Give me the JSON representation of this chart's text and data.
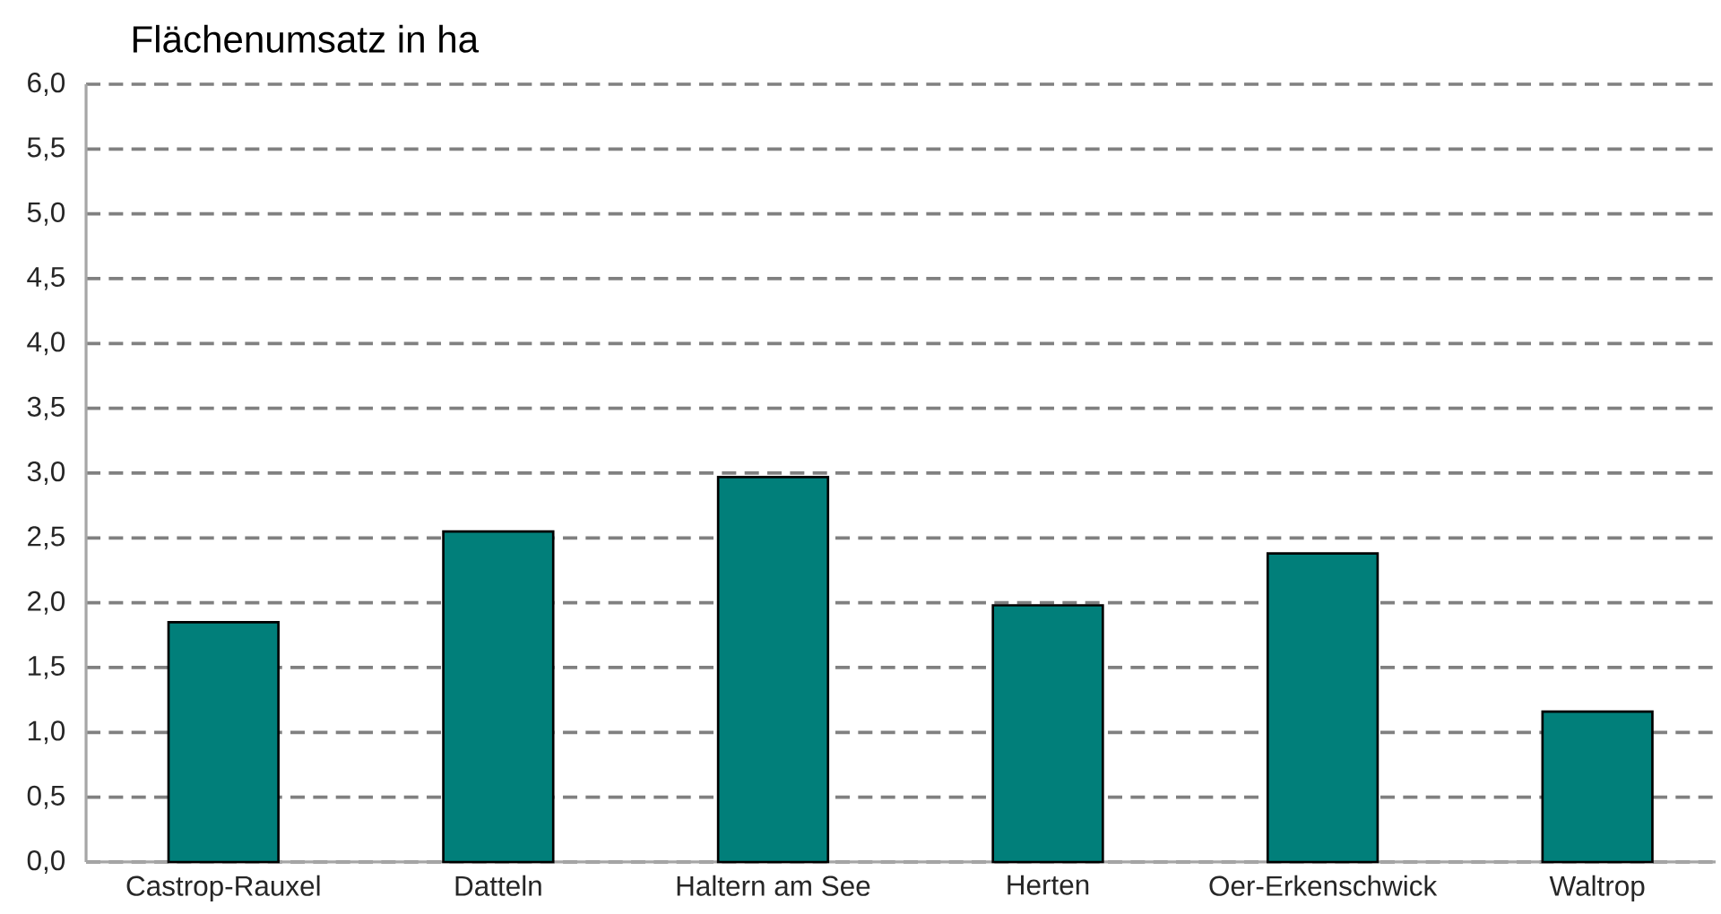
{
  "chart_data": {
    "type": "bar",
    "ylabel": "Flächenumsatz in ha",
    "categories": [
      "Castrop-Rauxel",
      "Datteln",
      "Haltern am See",
      "Herten",
      "Oer-Erkenschwick",
      "Waltrop"
    ],
    "values": [
      1.85,
      2.55,
      2.97,
      1.98,
      2.38,
      1.16
    ],
    "color": "#017f7a",
    "ylim": [
      0,
      6
    ],
    "yticks": [
      {
        "value": 0,
        "label": "0,0"
      },
      {
        "value": 0.5,
        "label": "0,5"
      },
      {
        "value": 1,
        "label": "1,0"
      },
      {
        "value": 1.5,
        "label": "1,5"
      },
      {
        "value": 2,
        "label": "2,0"
      },
      {
        "value": 2.5,
        "label": "2,5"
      },
      {
        "value": 3,
        "label": "3,0"
      },
      {
        "value": 3.5,
        "label": "3,5"
      },
      {
        "value": 4,
        "label": "4,0"
      },
      {
        "value": 4.5,
        "label": "4,5"
      },
      {
        "value": 5,
        "label": "5,0"
      },
      {
        "value": 5.5,
        "label": "5,5"
      },
      {
        "value": 6,
        "label": "6,0"
      }
    ],
    "grid": "y"
  }
}
